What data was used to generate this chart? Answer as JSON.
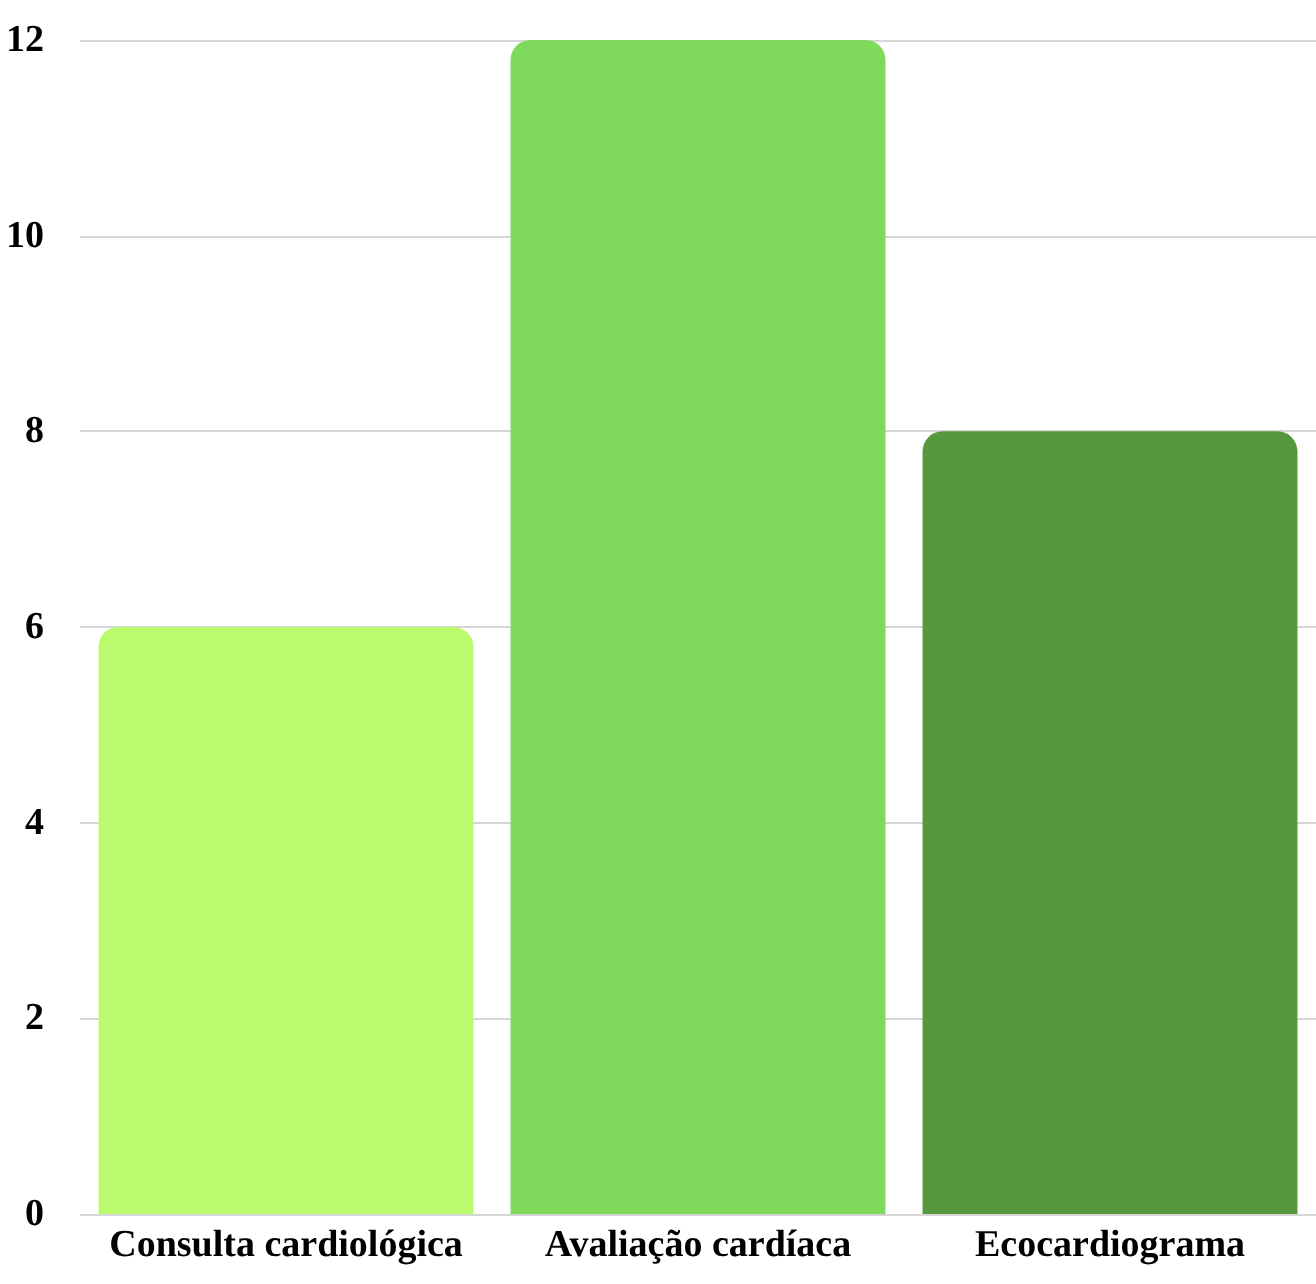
{
  "chart_data": {
    "type": "bar",
    "categories": [
      "Consulta cardiológica",
      "Avaliação cardíaca",
      "Ecocardiograma"
    ],
    "values": [
      6,
      12,
      8
    ],
    "colors": [
      "#bbfa6c",
      "#7fd95b",
      "#55983e"
    ],
    "ylim": [
      0,
      12
    ],
    "yticks": [
      0,
      2,
      4,
      6,
      8,
      10,
      12
    ],
    "grid": "y"
  }
}
